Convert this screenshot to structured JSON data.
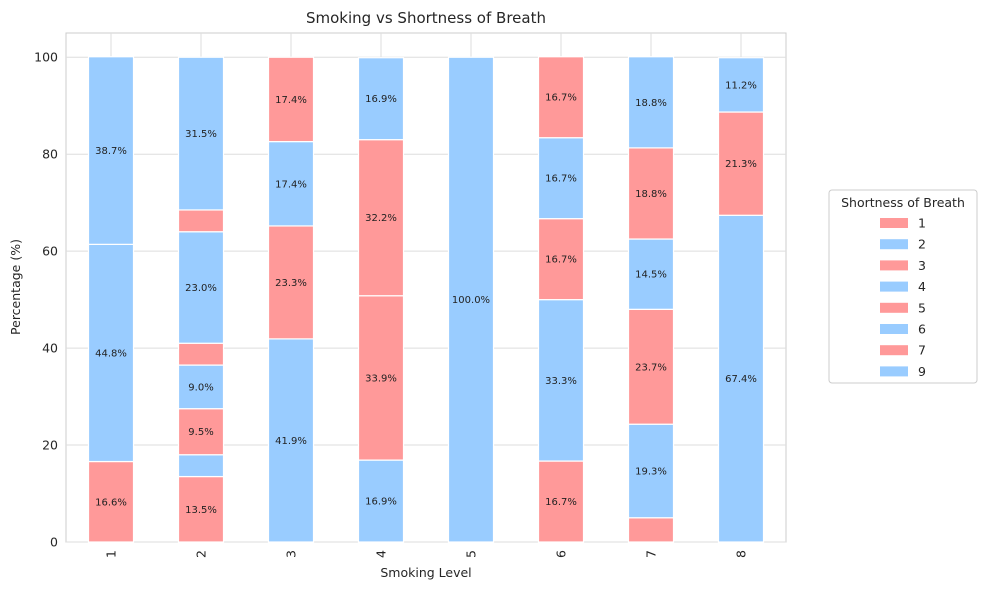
{
  "chart_data": {
    "type": "bar",
    "stacked": true,
    "title": "Smoking vs Shortness of Breath",
    "xlabel": "Smoking Level",
    "ylabel": "Percentage (%)",
    "ylim": [
      0,
      105
    ],
    "yticks": [
      0,
      20,
      40,
      60,
      80,
      100
    ],
    "grid": true,
    "legend_title": "Shortness of Breath",
    "legend_placement": "right",
    "categories": [
      "1",
      "2",
      "3",
      "4",
      "5",
      "6",
      "7",
      "8"
    ],
    "colors": [
      "#ff9999",
      "#99ccff"
    ],
    "series": [
      {
        "name": "1",
        "values": [
          16.6,
          13.5,
          0,
          0,
          0,
          16.7,
          5.0,
          0
        ]
      },
      {
        "name": "2",
        "values": [
          44.8,
          4.5,
          41.9,
          16.9,
          100.0,
          33.3,
          19.3,
          67.4
        ]
      },
      {
        "name": "3",
        "values": [
          0,
          9.5,
          23.3,
          33.9,
          0,
          16.7,
          23.7,
          21.3
        ]
      },
      {
        "name": "4",
        "values": [
          38.7,
          9.0,
          17.4,
          0,
          0,
          16.7,
          14.5,
          11.2
        ]
      },
      {
        "name": "5",
        "values": [
          0,
          4.5,
          17.4,
          32.2,
          0,
          16.7,
          18.8,
          0
        ]
      },
      {
        "name": "6",
        "values": [
          0,
          23.0,
          0,
          16.9,
          0,
          0,
          18.8,
          0
        ]
      },
      {
        "name": "7",
        "values": [
          0,
          4.5,
          0,
          0,
          0,
          0,
          0,
          0
        ]
      },
      {
        "name": "9",
        "values": [
          0,
          31.5,
          0,
          0,
          0,
          0,
          0,
          0
        ]
      }
    ],
    "segment_labels": [
      [
        "16.6%",
        "44.8%",
        "",
        "38.7%",
        "",
        "",
        "",
        ""
      ],
      [
        "13.5%",
        "",
        "9.5%",
        "9.0%",
        "",
        "23.0%",
        "",
        "31.5%"
      ],
      [
        "",
        "41.9%",
        "23.3%",
        "17.4%",
        "17.4%",
        "",
        "",
        ""
      ],
      [
        "",
        "16.9%",
        "33.9%",
        "",
        "32.2%",
        "16.9%",
        "",
        ""
      ],
      [
        "",
        "100.0%",
        "",
        "",
        "",
        "",
        "",
        ""
      ],
      [
        "16.7%",
        "33.3%",
        "16.7%",
        "16.7%",
        "16.7%",
        "",
        "",
        ""
      ],
      [
        "",
        "19.3%",
        "23.7%",
        "14.5%",
        "18.8%",
        "18.8%",
        "",
        ""
      ],
      [
        "",
        "67.4%",
        "21.3%",
        "11.2%",
        "",
        "",
        "",
        ""
      ]
    ]
  }
}
